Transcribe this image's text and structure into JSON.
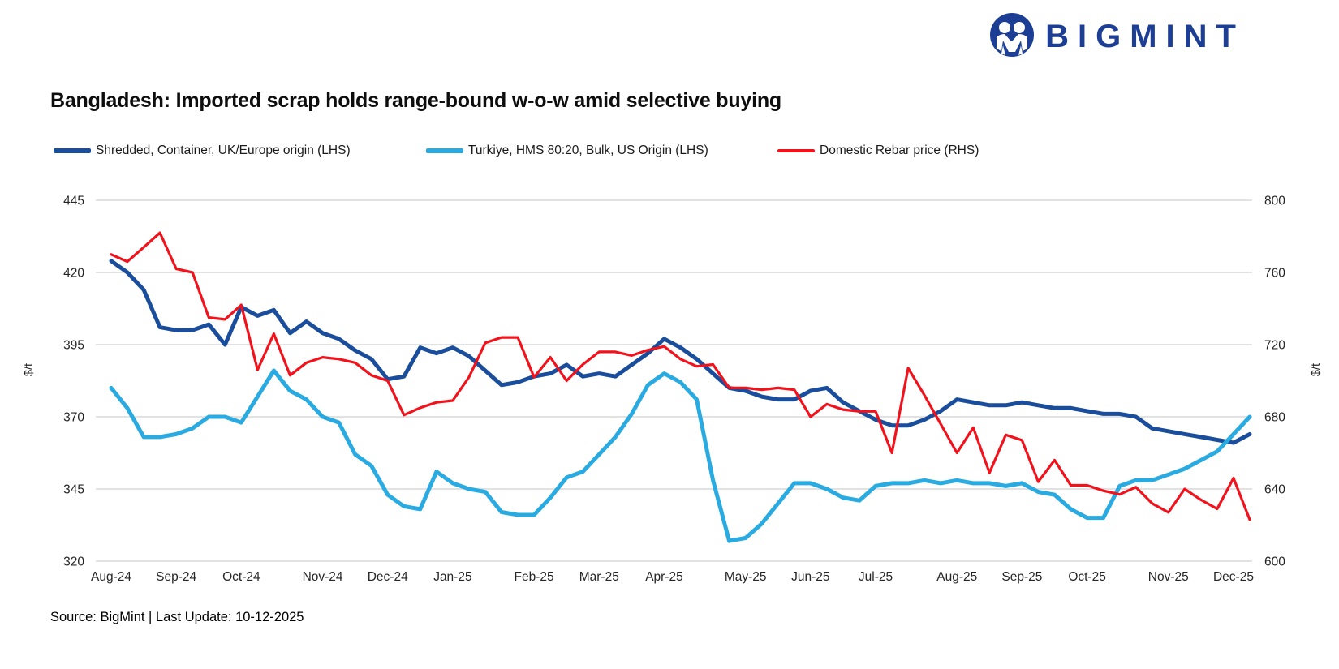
{
  "logo": {
    "text": "BIGMINT",
    "color": "#1d3e95"
  },
  "title": "Bangladesh: Imported scrap holds range-bound w-o-w amid selective buying",
  "source_note": "Source: BigMint | Last Update: 10-12-2025",
  "chart_data": {
    "type": "line",
    "title": "Bangladesh: Imported scrap holds range-bound w-o-w amid selective buying",
    "grid": true,
    "legend_position": "top",
    "colors": {
      "gridline": "#d9d9d9",
      "tick_text": "#262626"
    },
    "x_tick_labels": [
      "Aug-24",
      "Sep-24",
      "Oct-24",
      "Nov-24",
      "Dec-24",
      "Jan-25",
      "Feb-25",
      "Mar-25",
      "Apr-25",
      "May-25",
      "Jun-25",
      "Jul-25",
      "Aug-25",
      "Sep-25",
      "Oct-25",
      "Nov-25",
      "Dec-25"
    ],
    "x_tick_indices": [
      0,
      4,
      8,
      13,
      17,
      21,
      26,
      30,
      34,
      39,
      43,
      47,
      52,
      56,
      60,
      65,
      69
    ],
    "y_left": {
      "label": "$/t",
      "min": 320,
      "max": 445,
      "ticks": [
        445,
        420,
        395,
        370,
        345,
        320
      ]
    },
    "y_right": {
      "label": "$/t",
      "min": 600,
      "max": 800,
      "ticks": [
        800,
        760,
        720,
        680,
        640,
        600
      ]
    },
    "series": [
      {
        "name": "Shredded, Container, UK/Europe origin (LHS)",
        "axis": "left",
        "color": "#1a4e9d",
        "stroke_width": 5,
        "values": [
          424,
          420,
          414,
          401,
          400,
          400,
          402,
          395,
          408,
          405,
          407,
          399,
          403,
          399,
          397,
          393,
          390,
          383,
          384,
          394,
          392,
          394,
          391,
          386,
          381,
          382,
          384,
          385,
          388,
          384,
          385,
          384,
          388,
          392,
          397,
          394,
          390,
          385,
          380,
          379,
          377,
          376,
          376,
          379,
          380,
          375,
          372,
          369,
          367,
          367,
          369,
          372,
          376,
          375,
          374,
          374,
          375,
          374,
          373,
          373,
          372,
          371,
          371,
          370,
          366,
          365,
          364,
          363,
          362,
          361,
          364
        ]
      },
      {
        "name": "Turkiye, HMS 80:20, Bulk, US Origin (LHS)",
        "axis": "left",
        "color": "#29abe2",
        "stroke_width": 5,
        "values": [
          380,
          373,
          363,
          363,
          364,
          366,
          370,
          370,
          368,
          377,
          386,
          379,
          376,
          370,
          368,
          357,
          353,
          343,
          339,
          338,
          351,
          347,
          345,
          344,
          337,
          336,
          336,
          342,
          349,
          351,
          357,
          363,
          371,
          381,
          385,
          382,
          376,
          348,
          327,
          328,
          333,
          340,
          347,
          347,
          345,
          342,
          341,
          346,
          347,
          347,
          348,
          347,
          348,
          347,
          347,
          346,
          347,
          344,
          343,
          338,
          335,
          335,
          346,
          348,
          348,
          350,
          352,
          355,
          358,
          364,
          370
        ]
      },
      {
        "name": "Domestic Rebar price (RHS)",
        "axis": "right",
        "color": "#f2121b",
        "stroke_width": 3.2,
        "values": [
          770,
          766,
          774,
          782,
          762,
          760,
          735,
          734,
          742,
          706,
          726,
          703,
          710,
          713,
          712,
          710,
          703,
          700,
          681,
          685,
          688,
          689,
          702,
          721,
          724,
          724,
          702,
          713,
          700,
          709,
          716,
          716,
          714,
          717,
          719,
          712,
          708,
          709,
          696,
          696,
          695,
          696,
          695,
          680,
          687,
          684,
          683,
          683,
          660,
          707,
          692,
          676,
          660,
          674,
          649,
          670,
          667,
          644,
          656,
          642,
          642,
          639,
          637,
          641,
          632,
          627,
          640,
          634,
          629,
          646,
          623
        ]
      }
    ]
  }
}
